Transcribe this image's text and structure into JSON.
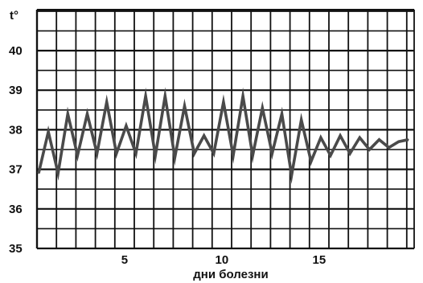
{
  "chart_data": {
    "type": "line",
    "title": "",
    "xlabel": "дни болезни",
    "ylabel": "t°",
    "xlim": [
      0,
      19.5
    ],
    "ylim": [
      35,
      41
    ],
    "grid": true,
    "x_ticks": [
      5,
      10,
      15
    ],
    "y_ticks": [
      35,
      36,
      37,
      38,
      39,
      40
    ],
    "colors": {
      "line": "#4a4a4a",
      "grid": "#111111",
      "background": "#ffffff"
    },
    "series": [
      {
        "x": [
          0,
          0.5,
          1,
          1.5,
          2,
          2.5,
          3,
          3.5,
          4,
          4.5,
          5,
          5.5,
          6,
          6.5,
          7,
          7.5,
          8,
          8.5,
          9,
          9.5,
          10,
          10.5,
          11,
          11.5,
          12,
          12.5,
          13,
          13.5,
          14,
          14.5,
          15,
          15.5,
          16,
          16.5,
          17,
          17.5,
          18,
          18.5,
          19
        ],
        "y": [
          36.9,
          37.95,
          36.9,
          38.4,
          37.35,
          38.4,
          37.4,
          38.7,
          37.4,
          38.1,
          37.4,
          38.85,
          37.35,
          38.85,
          37.3,
          38.6,
          37.4,
          37.85,
          37.4,
          38.7,
          37.35,
          38.85,
          37.35,
          38.55,
          37.4,
          38.4,
          36.85,
          38.25,
          37.2,
          37.8,
          37.35,
          37.85,
          37.4,
          37.8,
          37.5,
          37.75,
          37.55,
          37.7,
          37.75
        ]
      }
    ]
  }
}
